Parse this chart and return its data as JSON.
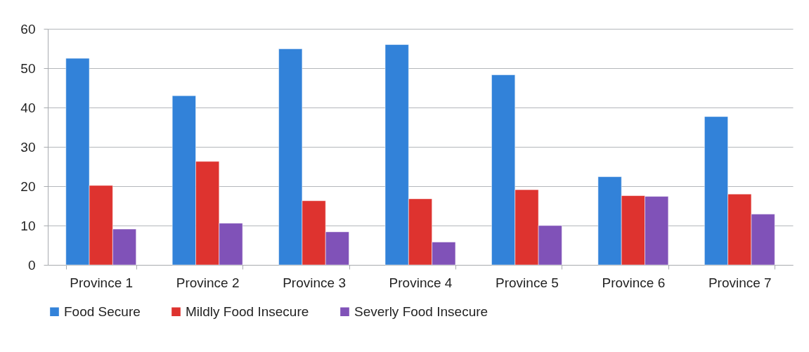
{
  "chart_data": {
    "type": "bar",
    "categories": [
      "Province 1",
      "Province 2",
      "Province 3",
      "Province 4",
      "Province 5",
      "Province 6",
      "Province 7"
    ],
    "series": [
      {
        "name": "Food Secure",
        "color": "#3282d9",
        "values": [
          52.5,
          43.0,
          54.9,
          56.0,
          48.3,
          22.4,
          37.7
        ]
      },
      {
        "name": "Mildly Food Insecure",
        "color": "#de332f",
        "values": [
          20.2,
          26.3,
          16.3,
          16.8,
          19.1,
          17.6,
          18.0
        ]
      },
      {
        "name": "Severly Food Insecure",
        "color": "#8052b8",
        "values": [
          9.1,
          10.6,
          8.4,
          5.8,
          10.0,
          17.4,
          12.9
        ]
      }
    ],
    "ylim": [
      0,
      60
    ],
    "yticks": [
      0,
      10,
      20,
      30,
      40,
      50,
      60
    ],
    "grid": "y",
    "legend": "bottom"
  }
}
